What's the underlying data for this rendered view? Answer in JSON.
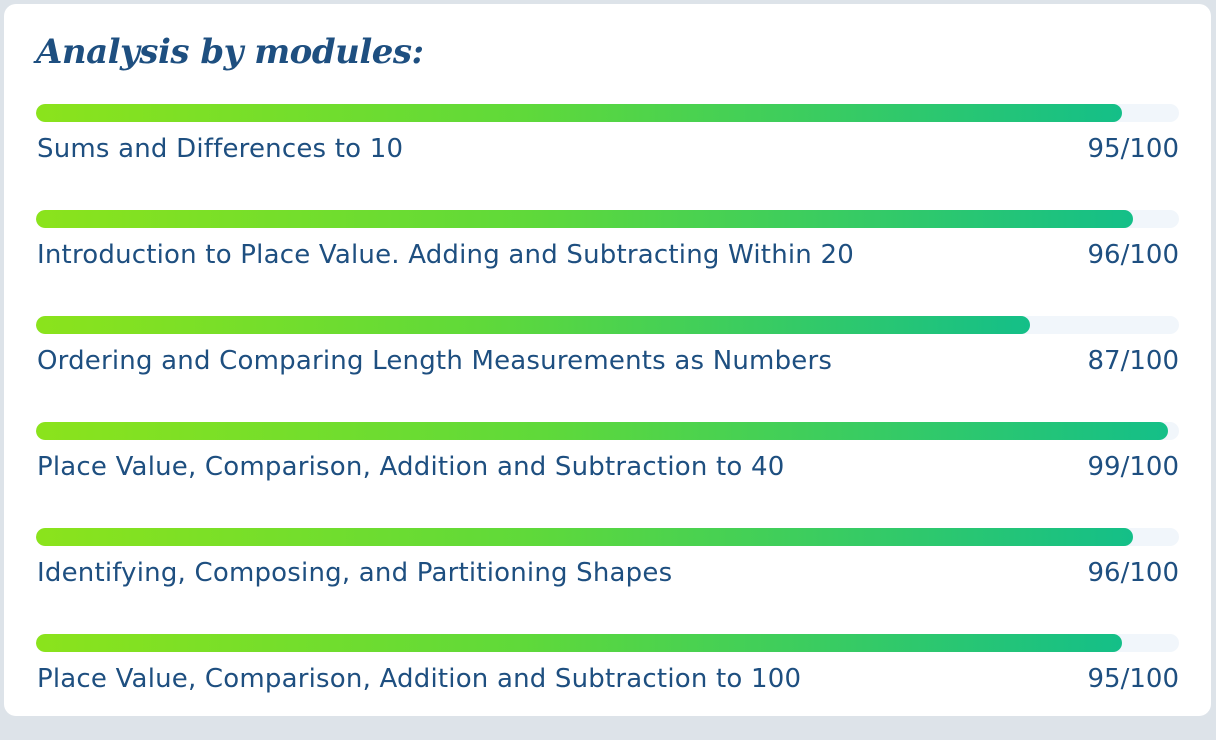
{
  "title": "Analysis by modules:",
  "modules": [
    {
      "name": "Sums and Differences to 10",
      "score_text": "95/100",
      "score": 95
    },
    {
      "name": "Introduction to Place Value. Adding and Subtracting Within 20",
      "score_text": "96/100",
      "score": 96
    },
    {
      "name": "Ordering and Comparing Length Measurements as Numbers",
      "score_text": "87/100",
      "score": 87
    },
    {
      "name": "Place Value, Comparison, Addition and Subtraction to 40",
      "score_text": "99/100",
      "score": 99
    },
    {
      "name": "Identifying, Composing, and Partitioning Shapes",
      "score_text": "96/100",
      "score": 96
    },
    {
      "name": "Place Value, Comparison, Addition and Subtraction to 100",
      "score_text": "95/100",
      "score": 95
    }
  ],
  "colors": {
    "title": "#1e4f80",
    "text": "#1e4f80",
    "track": "#f1f6fb",
    "fill_start": "#8be31c",
    "fill_end": "#14bf88"
  }
}
